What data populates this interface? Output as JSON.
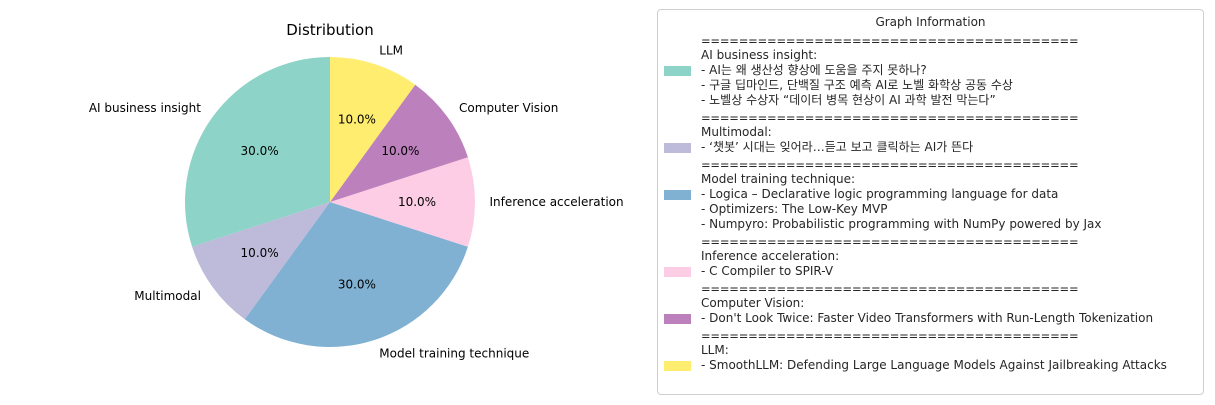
{
  "chart_data": {
    "type": "pie",
    "title": "Distribution",
    "categories": [
      "AI business insight",
      "Multimodal",
      "Model training technique",
      "Inference acceleration",
      "Computer Vision",
      "LLM"
    ],
    "values": [
      30.0,
      10.0,
      30.0,
      10.0,
      10.0,
      10.0
    ],
    "percent_labels": [
      "30.0%",
      "10.0%",
      "30.0%",
      "10.0%",
      "10.0%",
      "10.0%"
    ],
    "colors": [
      "#8dd3c7",
      "#bebada",
      "#80b1d3",
      "#fccde5",
      "#bc80bd",
      "#ffed6f"
    ],
    "start_angle_deg": 90,
    "direction": "counterclockwise",
    "legend_placement": "right"
  },
  "legend": {
    "title": "Graph Information",
    "separator": "========================================",
    "groups": [
      {
        "color": "#8dd3c7",
        "lines": [
          "AI business insight:",
          " - AI는 왜 생산성 향상에 도움을 주지 못하나?",
          " - 구글 딥마인드, 단백질 구조 예측 AI로 노벨 화학상 공동 수상",
          " - 노벨상 수상자 “데이터 병목 현상이 AI 과학 발전 막는다”"
        ]
      },
      {
        "color": "#bebada",
        "lines": [
          "Multimodal:",
          " - ‘챗봇’ 시대는 잊어라…듣고 보고 클릭하는 AI가 뜬다"
        ]
      },
      {
        "color": "#80b1d3",
        "lines": [
          "Model training technique:",
          " - Logica – Declarative logic programming language for data",
          " - Optimizers: The Low-Key MVP",
          " - Numpyro: Probabilistic programming with NumPy powered by Jax"
        ]
      },
      {
        "color": "#fccde5",
        "lines": [
          "Inference acceleration:",
          " - C Compiler to SPIR-V"
        ]
      },
      {
        "color": "#bc80bd",
        "lines": [
          "Computer Vision:",
          " - Don't Look Twice: Faster Video Transformers with Run-Length Tokenization"
        ]
      },
      {
        "color": "#ffed6f",
        "lines": [
          "LLM:",
          " - SmoothLLM: Defending Large Language Models Against Jailbreaking Attacks"
        ]
      }
    ]
  }
}
